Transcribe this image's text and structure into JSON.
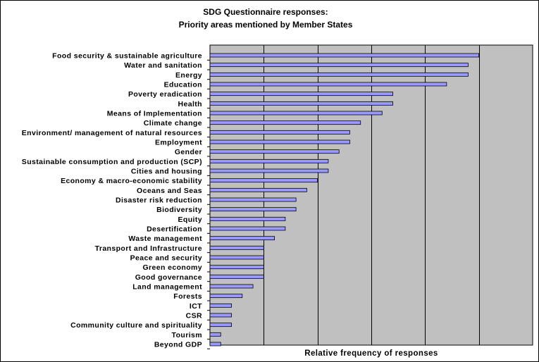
{
  "chart_data": {
    "type": "bar",
    "orientation": "horizontal",
    "title": [
      "SDG Questionnaire responses:",
      "Priority areas mentioned by Member States"
    ],
    "xlabel": "Relative frequency of responses",
    "ylabel": "",
    "xlim": [
      0,
      30
    ],
    "grid": true,
    "categories": [
      "Food security & sustainable agriculture",
      "Water and sanitation",
      "Energy",
      "Education",
      "Poverty eradication",
      "Health",
      "Means of Implementation",
      "Climate change",
      "Environment/ management of natural resources",
      "Employment",
      "Gender",
      "Sustainable consumption and production (SCP)",
      "Cities and housing",
      "Economy & macro-economic stability",
      "Oceans and Seas",
      "Disaster risk reduction",
      "Biodiversity",
      "Equity",
      "Desertification",
      "Waste management",
      "Transport and Infrastructure",
      "Peace and security",
      "Green economy",
      "Good governance",
      "Land management",
      "Forests",
      "ICT",
      "CSR",
      "Community culture and spirituality",
      "Tourism",
      "Beyond GDP"
    ],
    "values": [
      25,
      24,
      24,
      22,
      17,
      17,
      16,
      14,
      13,
      13,
      12,
      11,
      11,
      10,
      9,
      8,
      8,
      7,
      7,
      6,
      5,
      5,
      5,
      5,
      4,
      3,
      2,
      2,
      2,
      1,
      1
    ],
    "colors": {
      "bar_fill": "#9999ff",
      "bar_stroke": "#000000",
      "plot_background": "#c0c0c0",
      "gridline": "#000000"
    }
  }
}
